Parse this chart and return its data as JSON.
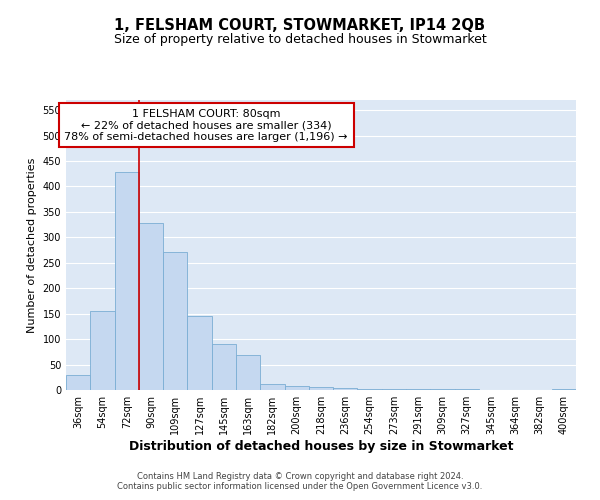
{
  "title_line1": "1, FELSHAM COURT, STOWMARKET, IP14 2QB",
  "title_line2": "Size of property relative to detached houses in Stowmarket",
  "xlabel": "Distribution of detached houses by size in Stowmarket",
  "ylabel": "Number of detached properties",
  "bar_color": "#c5d8f0",
  "bar_edgecolor": "#7aadd4",
  "categories": [
    "36sqm",
    "54sqm",
    "72sqm",
    "90sqm",
    "109sqm",
    "127sqm",
    "145sqm",
    "163sqm",
    "182sqm",
    "200sqm",
    "218sqm",
    "236sqm",
    "254sqm",
    "273sqm",
    "291sqm",
    "309sqm",
    "327sqm",
    "345sqm",
    "364sqm",
    "382sqm",
    "400sqm"
  ],
  "values": [
    30,
    155,
    428,
    328,
    272,
    145,
    90,
    68,
    12,
    8,
    5,
    3,
    2,
    1,
    1,
    1,
    1,
    0,
    0,
    0,
    2
  ],
  "ylim": [
    0,
    570
  ],
  "yticks": [
    0,
    50,
    100,
    150,
    200,
    250,
    300,
    350,
    400,
    450,
    500,
    550
  ],
  "vline_x": 2.5,
  "annotation_title": "1 FELSHAM COURT: 80sqm",
  "annotation_line1": "← 22% of detached houses are smaller (334)",
  "annotation_line2": "78% of semi-detached houses are larger (1,196) →",
  "footnote1": "Contains HM Land Registry data © Crown copyright and database right 2024.",
  "footnote2": "Contains public sector information licensed under the Open Government Licence v3.0.",
  "fig_bg_color": "#ffffff",
  "background_color": "#dde8f5",
  "grid_color": "#ffffff",
  "annotation_box_color": "#ffffff",
  "annotation_box_edgecolor": "#cc0000",
  "vline_color": "#cc0000",
  "title_fontsize": 10.5,
  "subtitle_fontsize": 9,
  "xlabel_fontsize": 9,
  "ylabel_fontsize": 8,
  "tick_fontsize": 7,
  "annotation_fontsize": 8,
  "footnote_fontsize": 6
}
